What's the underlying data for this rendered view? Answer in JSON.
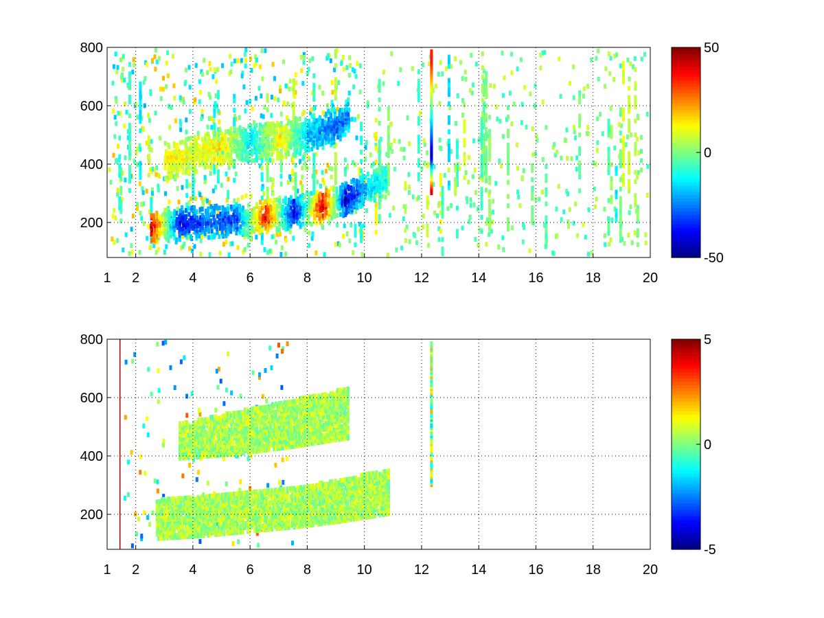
{
  "chart_data": [
    {
      "type": "heatmap",
      "title": "",
      "xlabel": "",
      "ylabel": "",
      "xlim": [
        1,
        20
      ],
      "ylim": [
        80,
        800
      ],
      "xticks": [
        1,
        2,
        4,
        6,
        8,
        10,
        12,
        14,
        16,
        18,
        20
      ],
      "yticks": [
        200,
        400,
        600,
        800
      ],
      "grid": true,
      "colormap": "jet",
      "clim": [
        -50,
        50
      ],
      "colorbar_ticks": [
        50,
        0,
        -50
      ],
      "features": [
        {
          "name": "lower ridge",
          "x": [
            2.5,
            3.5,
            4.5,
            5.5,
            6.5,
            7.5,
            8.5,
            9.3,
            10.0,
            10.7
          ],
          "y": [
            195,
            205,
            212,
            220,
            230,
            245,
            265,
            290,
            320,
            350
          ],
          "values": [
            45,
            -40,
            -30,
            -35,
            40,
            -45,
            45,
            -45,
            -20,
            -10
          ]
        },
        {
          "name": "upper ridge",
          "x": [
            3.0,
            4.0,
            5.0,
            6.0,
            7.0,
            8.0,
            9.0,
            9.4
          ],
          "y": [
            420,
            440,
            465,
            480,
            490,
            510,
            540,
            570
          ],
          "values": [
            15,
            10,
            15,
            -15,
            15,
            -20,
            -30,
            -25
          ]
        },
        {
          "name": "column at x=12.3",
          "x": [
            12.3,
            12.3,
            12.3,
            12.3
          ],
          "y": [
            320,
            440,
            560,
            760
          ],
          "values": [
            40,
            -45,
            -15,
            35
          ]
        }
      ]
    },
    {
      "type": "heatmap",
      "title": "",
      "xlabel": "",
      "ylabel": "",
      "xlim": [
        1,
        20
      ],
      "ylim": [
        80,
        800
      ],
      "xticks": [
        1,
        2,
        4,
        6,
        8,
        10,
        12,
        14,
        16,
        18,
        20
      ],
      "yticks": [
        200,
        400,
        600,
        800
      ],
      "grid": true,
      "colormap": "jet",
      "clim": [
        -5,
        5
      ],
      "colorbar_ticks": [
        5,
        0,
        -5
      ],
      "features": [
        {
          "name": "lower band",
          "x_range": [
            2.7,
            10.8
          ],
          "y_lower": [
            125,
            135,
            150,
            165,
            185,
            210
          ],
          "y_upper": [
            260,
            275,
            285,
            300,
            330,
            360
          ],
          "value": 0.4
        },
        {
          "name": "upper band",
          "x_range": [
            3.5,
            9.4
          ],
          "y_lower": [
            400,
            415,
            440,
            470
          ],
          "y_upper": [
            520,
            560,
            600,
            640
          ],
          "value": 0.4
        },
        {
          "name": "column at x=12.3",
          "x": 12.3,
          "y_range": [
            310,
            800
          ],
          "value": 0.2
        },
        {
          "name": "line at x=1.45",
          "x": 1.45,
          "y_range": [
            80,
            800
          ],
          "value": 4.5
        }
      ]
    }
  ]
}
